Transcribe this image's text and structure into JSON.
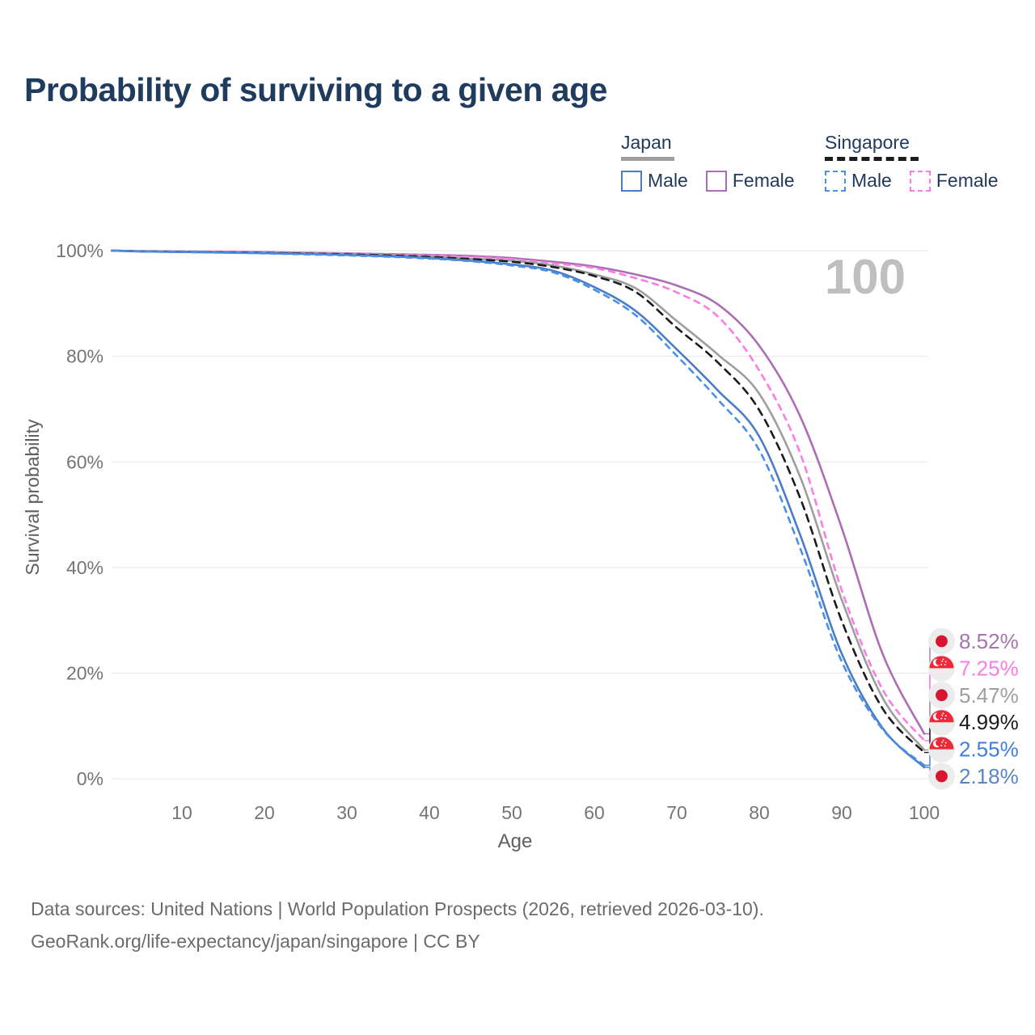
{
  "title": "Probability of surviving to a given age",
  "watermark": "100",
  "colors": {
    "title_text": "#1f3b5e",
    "legend_text": "#22395c",
    "japan_male": "#4a7dc9",
    "japan_female": "#ad6db4",
    "japan_total": "#9e9e9e",
    "singapore_male": "#4a90e8",
    "singapore_female": "#fb7ce4",
    "singapore_total": "#1c1c1c",
    "grid": "#e7e7e7",
    "tick_text": "#757575",
    "axis_label_text": "#5f5f5f",
    "watermark_text": "#bfbfbf",
    "footer_text": "#6b6b6b",
    "badge_bg": "#ececec",
    "japan_flag_red": "#d8142f",
    "singapore_flag_red": "#ed2939"
  },
  "legend": {
    "groups": [
      {
        "label": "Japan",
        "line_style": "solid",
        "underline_color": "#9e9e9e",
        "items": [
          {
            "label": "Male",
            "color": "#4a7dc9"
          },
          {
            "label": "Female",
            "color": "#ad6db4"
          }
        ]
      },
      {
        "label": "Singapore",
        "line_style": "dashed",
        "underline_color": "#1c1c1c",
        "items": [
          {
            "label": "Male",
            "color": "#4a90e8"
          },
          {
            "label": "Female",
            "color": "#fb7ce4"
          }
        ]
      }
    ]
  },
  "chart_data": {
    "type": "line",
    "title": "Probability of surviving to a given age",
    "xlabel": "Age",
    "ylabel": "Survival probability",
    "xlim": [
      0,
      100
    ],
    "ylim": [
      0,
      100
    ],
    "grid": "horizontal-only",
    "xticks": [
      10,
      20,
      30,
      40,
      50,
      60,
      70,
      80,
      90,
      100
    ],
    "yticks": [
      {
        "value": 0,
        "label": "0%"
      },
      {
        "value": 20,
        "label": "20%"
      },
      {
        "value": 40,
        "label": "40%"
      },
      {
        "value": 60,
        "label": "60%"
      },
      {
        "value": 80,
        "label": "80%"
      },
      {
        "value": 100,
        "label": "100%"
      }
    ],
    "ages": [
      1.5,
      5,
      10,
      15,
      20,
      25,
      30,
      35,
      40,
      45,
      50,
      55,
      60,
      65,
      70,
      75,
      80,
      85,
      90,
      95,
      100
    ],
    "series": [
      {
        "id": "japan-female",
        "country": "Japan",
        "sex": "Female",
        "color": "#ad6db4",
        "dash": null,
        "flag": "japan",
        "end_label": "8.52%",
        "label_color": "#a574ad",
        "values": [
          100,
          99.92,
          99.85,
          99.8,
          99.72,
          99.62,
          99.5,
          99.35,
          99.2,
          99.0,
          98.6,
          97.9,
          97.0,
          95.5,
          93.4,
          89.8,
          82.0,
          68.5,
          47.5,
          23.5,
          8.52
        ]
      },
      {
        "id": "singapore-female",
        "country": "Singapore",
        "sex": "Female",
        "color": "#fb7ce4",
        "dash": "7 7",
        "flag": "singapore",
        "end_label": "7.25%",
        "label_color": "#fb7ce4",
        "values": [
          100,
          99.9,
          99.82,
          99.75,
          99.65,
          99.55,
          99.45,
          99.3,
          99.1,
          98.8,
          98.4,
          97.6,
          96.7,
          94.8,
          92.1,
          87.5,
          77.3,
          61.5,
          35.7,
          16.8,
          7.25
        ]
      },
      {
        "id": "japan-both-sexes",
        "country": "Japan",
        "sex": "Both sexes",
        "color": "#9e9e9e",
        "dash": null,
        "flag": "japan",
        "end_label": "5.47%",
        "label_color": "#9e9e9e",
        "values": [
          100,
          99.88,
          99.8,
          99.72,
          99.62,
          99.5,
          99.35,
          99.15,
          98.9,
          98.5,
          98.1,
          97.2,
          95.5,
          92.9,
          86.7,
          80.3,
          72.9,
          57.0,
          33.9,
          15.2,
          5.47
        ]
      },
      {
        "id": "singapore-both-sexes",
        "country": "Singapore",
        "sex": "Both sexes",
        "color": "#1c1c1c",
        "dash": "9 7",
        "flag": "singapore",
        "end_label": "4.99%",
        "label_color": "#1a1a1a",
        "values": [
          100,
          99.87,
          99.78,
          99.68,
          99.58,
          99.45,
          99.3,
          99.1,
          98.8,
          98.4,
          97.9,
          96.9,
          95.2,
          92.2,
          85.4,
          78.8,
          69.8,
          53.0,
          29.9,
          13.2,
          4.99
        ]
      },
      {
        "id": "singapore-male",
        "country": "Singapore",
        "sex": "Male",
        "color": "#4a90e8",
        "dash": "7 7",
        "flag": "singapore",
        "end_label": "2.55%",
        "label_color": "#3d7ee0",
        "values": [
          100,
          99.85,
          99.72,
          99.62,
          99.48,
          99.3,
          99.1,
          98.85,
          98.5,
          98.0,
          97.2,
          95.9,
          92.6,
          87.8,
          80.1,
          71.8,
          62.2,
          43.5,
          22.2,
          9.3,
          2.55
        ]
      },
      {
        "id": "japan-male",
        "country": "Japan",
        "sex": "Male",
        "color": "#4a7dc9",
        "dash": null,
        "flag": "japan",
        "end_label": "2.18%",
        "label_color": "#5b84c4",
        "values": [
          100,
          99.86,
          99.75,
          99.65,
          99.52,
          99.38,
          99.2,
          98.95,
          98.6,
          98.1,
          97.4,
          96.2,
          93.1,
          88.6,
          81.3,
          73.5,
          64.8,
          46.0,
          23.7,
          9.5,
          2.18
        ]
      }
    ]
  },
  "footer": {
    "line1": "Data sources: United Nations | World Population Prospects (2026, retrieved 2026-03-10).",
    "line2": "GeoRank.org/life-expectancy/japan/singapore | CC BY"
  }
}
